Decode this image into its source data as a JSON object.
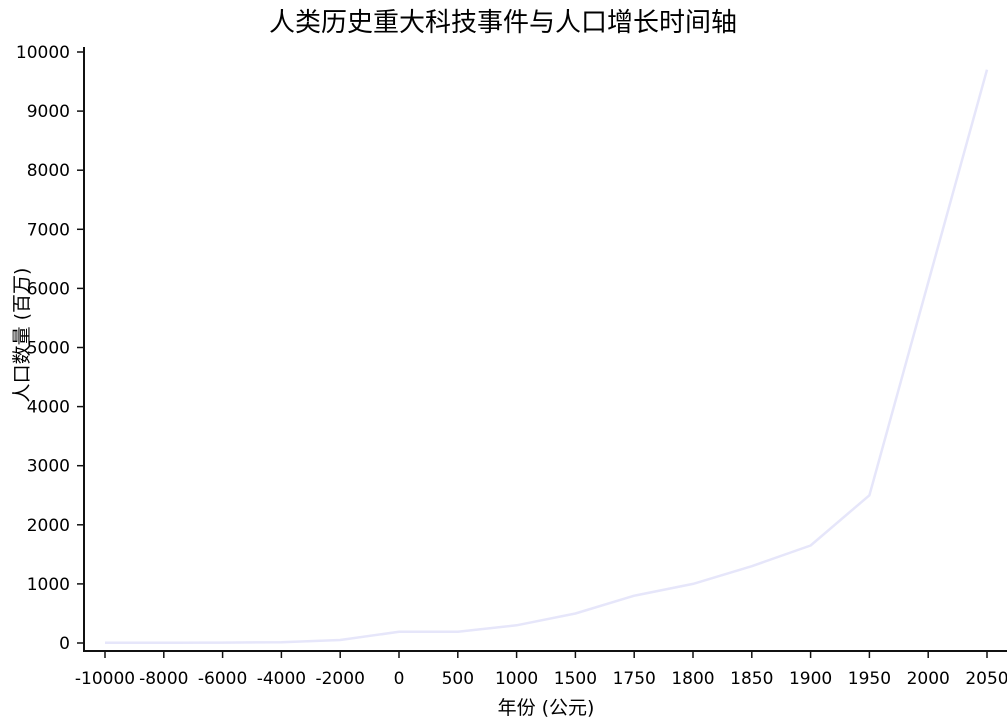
{
  "chart_data": {
    "type": "line",
    "title": "人类历史重大科技事件与人口增长时间轴",
    "xlabel": "年份 (公元)",
    "ylabel": "人口数量 (百万)",
    "categories": [
      "-10000",
      "-8000",
      "-6000",
      "-4000",
      "-2000",
      "0",
      "500",
      "1000",
      "1500",
      "1750",
      "1800",
      "1850",
      "1900",
      "1950",
      "2000",
      "2050"
    ],
    "series": [
      {
        "values": [
          4,
          5,
          7,
          14,
          50,
          190,
          190,
          300,
          500,
          800,
          1000,
          1300,
          1650,
          2500,
          6100,
          9700
        ]
      }
    ],
    "yticks": [
      0,
      1000,
      2000,
      3000,
      4000,
      5000,
      6000,
      7000,
      8000,
      9000,
      10000
    ],
    "ylim": [
      0,
      10000
    ],
    "grid": false,
    "line_color": "#e6e6fa"
  }
}
